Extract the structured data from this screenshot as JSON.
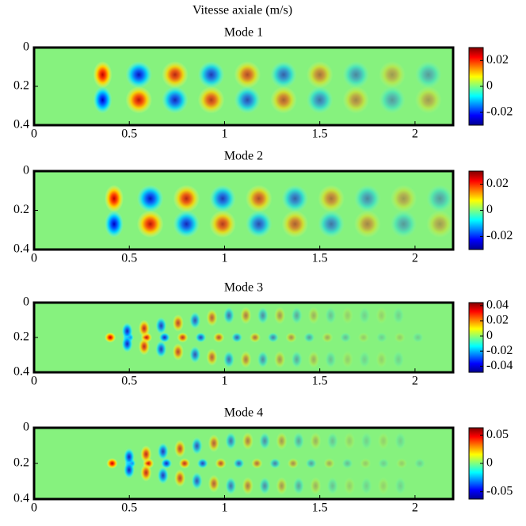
{
  "title": "Vitesse axiale (m/s)",
  "chart_data": [
    {
      "type": "heatmap",
      "title": "Mode 1",
      "xlim": [
        0,
        2.2
      ],
      "ylim": [
        0,
        0.4
      ],
      "xticks": [
        0,
        0.5,
        1,
        1.5,
        2
      ],
      "yticks": [
        0,
        0.2,
        0.4
      ],
      "clim": [
        -0.03,
        0.03
      ],
      "cticks": [
        0.02,
        0,
        -0.02
      ]
    },
    {
      "type": "heatmap",
      "title": "Mode 2",
      "xlim": [
        0,
        2.2
      ],
      "ylim": [
        0,
        0.4
      ],
      "xticks": [
        0,
        0.5,
        1,
        1.5,
        2
      ],
      "yticks": [
        0,
        0.2,
        0.4
      ],
      "clim": [
        -0.03,
        0.03
      ],
      "cticks": [
        0.02,
        0,
        -0.02
      ]
    },
    {
      "type": "heatmap",
      "title": "Mode 3",
      "xlim": [
        0,
        2.2
      ],
      "ylim": [
        0,
        0.4
      ],
      "xticks": [
        0,
        0.5,
        1,
        1.5,
        2
      ],
      "yticks": [
        0,
        0.2,
        0.4
      ],
      "clim": [
        -0.048,
        0.044
      ],
      "cticks": [
        0.04,
        0.02,
        0,
        -0.02,
        -0.04
      ]
    },
    {
      "type": "heatmap",
      "title": "Mode 4",
      "xlim": [
        0,
        2.2
      ],
      "ylim": [
        0,
        0.4
      ],
      "xticks": [
        0,
        0.5,
        1,
        1.5,
        2
      ],
      "yticks": [
        0,
        0.2,
        0.4
      ],
      "clim": [
        -0.063,
        0.063
      ],
      "cticks": [
        0.05,
        0,
        -0.05
      ]
    }
  ]
}
